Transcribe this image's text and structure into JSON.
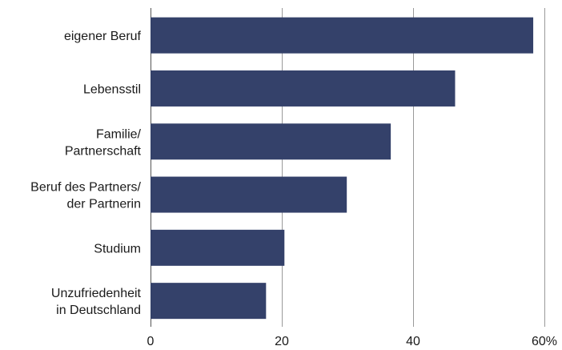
{
  "chart_data": {
    "type": "bar",
    "orientation": "horizontal",
    "categories": [
      [
        "eigener Beruf"
      ],
      [
        "Lebensstil"
      ],
      [
        "Familie/",
        "Partnerschaft"
      ],
      [
        "Beruf des Partners/",
        "der Partnerin"
      ],
      [
        "Studium"
      ],
      [
        "Unzufriedenheit",
        "in Deutschland"
      ]
    ],
    "values": [
      58.3,
      46.4,
      36.6,
      29.9,
      20.4,
      17.6
    ],
    "xlim": [
      0,
      60
    ],
    "xticks": [
      {
        "value": 0,
        "label": "0"
      },
      {
        "value": 20,
        "label": "20"
      },
      {
        "value": 40,
        "label": "40"
      },
      {
        "value": 60,
        "label": "60%"
      }
    ],
    "grid": true,
    "bar_color": "#34416a",
    "title": "",
    "xlabel": "",
    "ylabel": ""
  }
}
